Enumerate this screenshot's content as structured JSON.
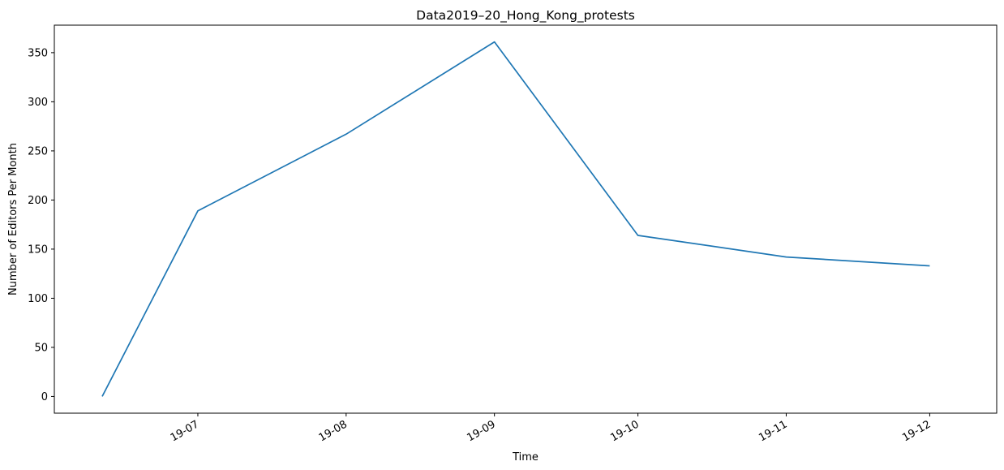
{
  "chart_data": {
    "type": "line",
    "title": "Data2019–20_Hong_Kong_protests",
    "xlabel": "Time",
    "ylabel": "Number of Editors Per Month",
    "x_tick_labels": [
      "19-07",
      "19-08",
      "19-09",
      "19-10",
      "19-11",
      "19-12"
    ],
    "x_ticks": [
      "2019-07-01",
      "2019-08-01",
      "2019-09-01",
      "2019-10-01",
      "2019-11-01",
      "2019-12-01"
    ],
    "y_ticks": [
      0,
      50,
      100,
      150,
      200,
      250,
      300,
      350
    ],
    "ylim": [
      -17,
      378
    ],
    "xlim": [
      "2019-06-01",
      "2019-12-15"
    ],
    "grid": false,
    "series": [
      {
        "color": "#1f77b4",
        "x": [
          "2019-06-11",
          "2019-07-01",
          "2019-08-01",
          "2019-09-01",
          "2019-10-01",
          "2019-11-01",
          "2019-12-01"
        ],
        "y": [
          0,
          189,
          267,
          361,
          164,
          142,
          133
        ]
      }
    ]
  }
}
